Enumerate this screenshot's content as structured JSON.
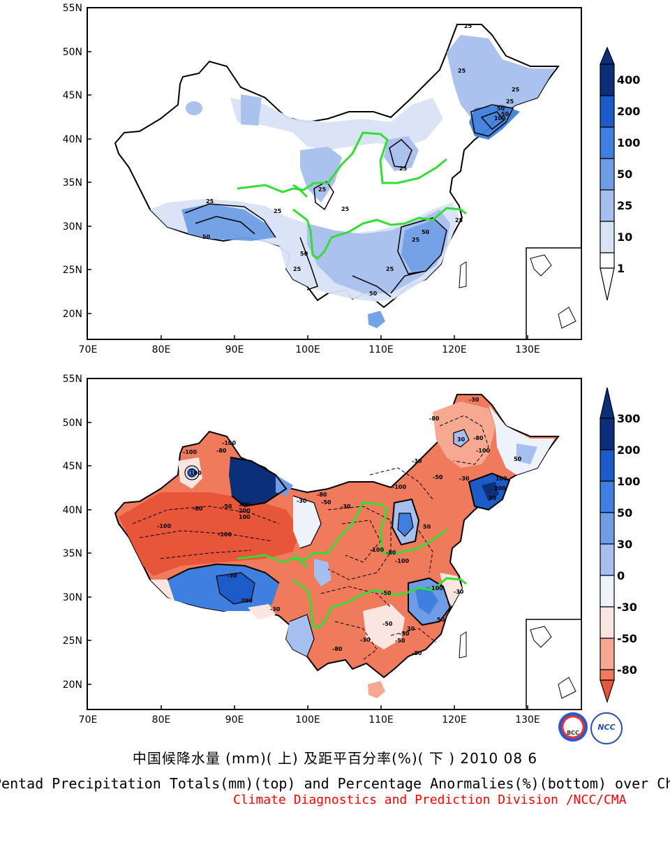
{
  "maps": {
    "top": {
      "lat_ticks": [
        "55N",
        "50N",
        "45N",
        "40N",
        "35N",
        "30N",
        "25N",
        "20N"
      ],
      "lon_ticks": [
        "70E",
        "80E",
        "90E",
        "100E",
        "110E",
        "120E",
        "130E"
      ],
      "colorbar": {
        "labels": [
          "400",
          "200",
          "100",
          "50",
          "25",
          "10",
          "1"
        ],
        "colors": [
          "#0b2f78",
          "#1b5cc9",
          "#3f7fde",
          "#6e9de6",
          "#a7bfee",
          "#d9e3f6",
          "#ffffff"
        ]
      },
      "contour_labels": [
        "25",
        "25",
        "25",
        "50",
        "100",
        "50",
        "25",
        "25",
        "25",
        "25",
        "50",
        "25",
        "25",
        "50",
        "50",
        "25",
        "25",
        "50",
        "25",
        "25"
      ]
    },
    "bottom": {
      "lat_ticks": [
        "55N",
        "50N",
        "45N",
        "40N",
        "35N",
        "30N",
        "25N",
        "20N"
      ],
      "lon_ticks": [
        "70E",
        "80E",
        "90E",
        "100E",
        "110E",
        "120E",
        "130E"
      ],
      "colorbar": {
        "labels": [
          "300",
          "200",
          "100",
          "50",
          "30",
          "0",
          "-30",
          "-50",
          "-80"
        ],
        "colors": [
          "#0b2f78",
          "#1b5cc9",
          "#3f7fde",
          "#6e9de6",
          "#a7bfee",
          "#eef3fb",
          "#fbe5e0",
          "#f6a890",
          "#f07a5c",
          "#e8563a"
        ]
      },
      "contour_labels": [
        "-100",
        "-80",
        "-100",
        "100",
        "-50",
        "300",
        "200",
        "100",
        "-80",
        "-100",
        "-100",
        "-50",
        "-30",
        "-80",
        "-30",
        "-100",
        "-80",
        "-100",
        "-50",
        "30",
        "50",
        "-30",
        "-80",
        "-30",
        "100",
        "200",
        "30",
        "50",
        "-100",
        "-80",
        "-30",
        "200",
        "-30",
        "-50",
        "-80",
        "-50",
        "-30",
        "-30",
        "-80",
        "100",
        "50",
        "-30",
        "30",
        "-50",
        "-100",
        "-30"
      ]
    }
  },
  "caption": {
    "chinese": "中国候降水量 (mm)( 上) 及距平百分率(%)( 下 ) 2010 08 6",
    "english": "Pentad Precipitation Totals(mm)(top) and Percentage Anormalies(%)(bottom) over China",
    "credit": "Climate Diagnostics and Prediction Division /NCC/CMA",
    "credit_color": "#ff0000"
  },
  "logos": [
    "BCC",
    "NCC"
  ]
}
